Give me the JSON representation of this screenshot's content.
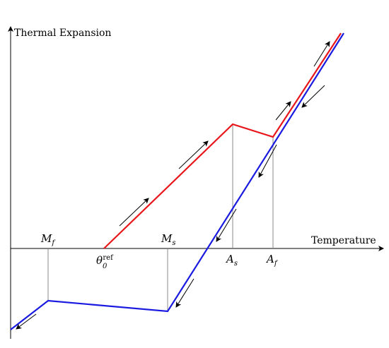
{
  "y_axis_label": "Thermal Expansion",
  "x_axis_label": "Temperature",
  "points": {
    "mf": {
      "base": "M",
      "sub": "f"
    },
    "ms": {
      "base": "M",
      "sub": "s"
    },
    "theta": {
      "base": "θ",
      "sub": "0",
      "sup": "ref"
    },
    "as": {
      "base": "A",
      "sub": "s"
    },
    "af": {
      "base": "A",
      "sub": "f"
    }
  },
  "colors": {
    "heating": "#e8161b",
    "cooling": "#1a1ae0",
    "axis": "#000000",
    "guide": "#888888"
  }
}
